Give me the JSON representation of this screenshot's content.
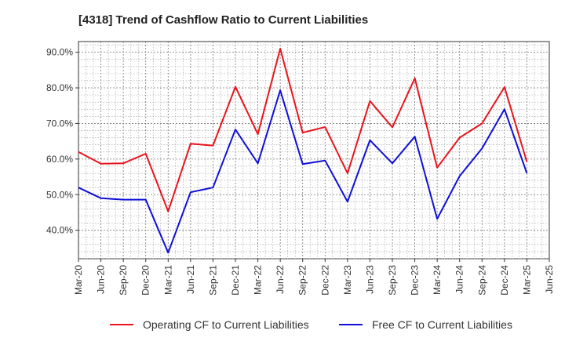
{
  "chart_data": {
    "type": "line",
    "title": "[4318]  Trend of Cashflow Ratio to Current Liabilities",
    "xlabel": "",
    "ylabel": "",
    "x_ticks": [
      "Mar-20",
      "Jun-20",
      "Sep-20",
      "Dec-20",
      "Mar-21",
      "Jun-21",
      "Sep-21",
      "Dec-21",
      "Mar-22",
      "Jun-22",
      "Sep-22",
      "Dec-22",
      "Mar-23",
      "Jun-23",
      "Sep-23",
      "Dec-23",
      "Mar-24",
      "Jun-24",
      "Sep-24",
      "Dec-24",
      "Mar-25",
      "Jun-25"
    ],
    "y_ticks": [
      "40.0%",
      "50.0%",
      "60.0%",
      "70.0%",
      "80.0%",
      "90.0%"
    ],
    "y_tick_values": [
      40,
      50,
      60,
      70,
      80,
      90
    ],
    "ylim": [
      32,
      93
    ],
    "grid": true,
    "legend_position": "bottom",
    "x": [
      "Mar-20",
      "Jun-20",
      "Sep-20",
      "Dec-20",
      "Mar-21",
      "Jun-21",
      "Sep-21",
      "Dec-21",
      "Mar-22",
      "Jun-22",
      "Sep-22",
      "Dec-22",
      "Mar-23",
      "Jun-23",
      "Sep-23",
      "Dec-23",
      "Mar-24",
      "Jun-24",
      "Sep-24",
      "Dec-24",
      "Mar-25"
    ],
    "series": [
      {
        "name": "Operating CF to Current Liabilities",
        "color": "#e8141c",
        "values": [
          62.0,
          58.7,
          58.8,
          61.5,
          45.3,
          64.3,
          63.8,
          80.3,
          67.0,
          91.0,
          67.4,
          69.0,
          56.0,
          76.3,
          68.9,
          82.7,
          57.6,
          66.0,
          70.0,
          80.2,
          59.2
        ]
      },
      {
        "name": "Free CF to Current Liabilities",
        "color": "#1010d8",
        "values": [
          52.0,
          49.0,
          48.6,
          48.6,
          33.7,
          50.7,
          52.0,
          68.3,
          58.8,
          79.3,
          58.6,
          59.6,
          48.0,
          65.3,
          58.8,
          66.3,
          43.2,
          55.2,
          63.0,
          74.0,
          56.0
        ]
      }
    ]
  }
}
